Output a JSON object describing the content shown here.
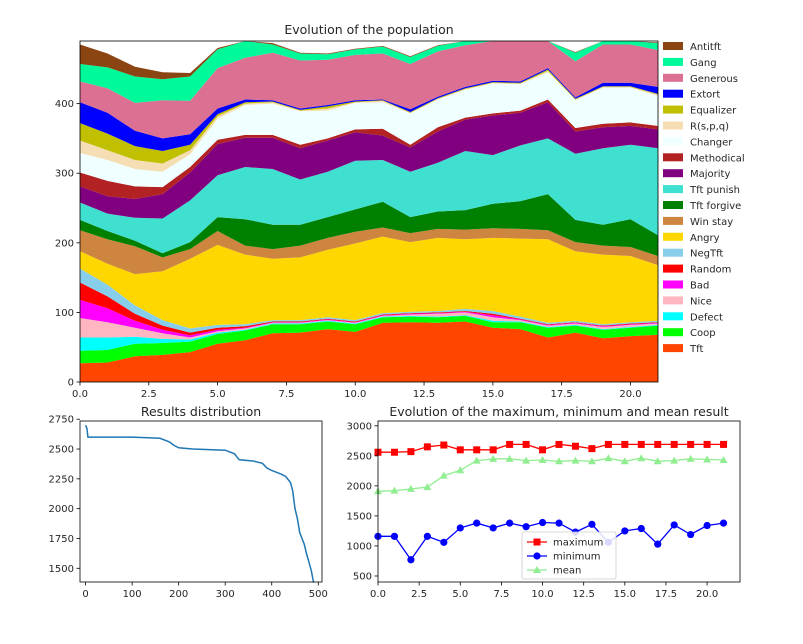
{
  "chart_data": [
    {
      "type": "area",
      "stacked": true,
      "title": "Evolution of the population",
      "xlim": [
        0,
        21
      ],
      "ylim": [
        0,
        490
      ],
      "xticks": [
        0,
        2.5,
        5,
        7.5,
        10,
        12.5,
        15,
        17.5,
        20
      ],
      "xtick_labels": [
        "0.0",
        "2.5",
        "5.0",
        "7.5",
        "10.0",
        "12.5",
        "15.0",
        "17.5",
        "20.0"
      ],
      "yticks": [
        0,
        100,
        200,
        300,
        400
      ],
      "yticks_labels": [
        "0",
        "100",
        "200",
        "300",
        "400"
      ],
      "legend_position": "right-outside",
      "x": [
        0,
        1,
        2,
        3,
        4,
        5,
        6,
        7,
        8,
        9,
        10,
        11,
        12,
        13,
        14,
        15,
        16,
        17,
        18,
        19,
        20,
        21
      ],
      "series": [
        {
          "name": "Tft",
          "color": "#ff4500",
          "values": [
            27,
            28,
            37,
            39,
            43,
            55,
            60,
            70,
            71,
            76,
            72,
            85,
            86,
            85,
            87,
            78,
            76,
            64,
            71,
            63,
            66,
            68
          ]
        },
        {
          "name": "Coop",
          "color": "#00ff00",
          "values": [
            18,
            18,
            18,
            17,
            15,
            14,
            14,
            13,
            12,
            11,
            11,
            8,
            8,
            8,
            8,
            8,
            10,
            14,
            10,
            12,
            12,
            13
          ]
        },
        {
          "name": "Defect",
          "color": "#00ffff",
          "values": [
            19,
            18,
            10,
            6,
            3,
            2,
            1,
            1,
            1,
            1,
            1,
            1,
            1,
            1,
            1,
            2,
            1,
            1,
            1,
            1,
            1,
            1
          ]
        },
        {
          "name": "Nice",
          "color": "#ffb6c1",
          "values": [
            28,
            22,
            13,
            8,
            3,
            2,
            2,
            1,
            1,
            1,
            1,
            1,
            2,
            4,
            4,
            5,
            2,
            2,
            2,
            3,
            3,
            2
          ]
        },
        {
          "name": "Bad",
          "color": "#ff00ff",
          "values": [
            26,
            20,
            10,
            5,
            3,
            2,
            1,
            1,
            1,
            1,
            1,
            1,
            1,
            1,
            1,
            3,
            1,
            1,
            1,
            1,
            1,
            1
          ]
        },
        {
          "name": "Random",
          "color": "#ff0000",
          "values": [
            25,
            17,
            10,
            6,
            4,
            3,
            2,
            1,
            1,
            1,
            1,
            1,
            1,
            1,
            1,
            2,
            1,
            1,
            1,
            1,
            1,
            1
          ]
        },
        {
          "name": "NegTft",
          "color": "#87ceeb",
          "values": [
            20,
            17,
            12,
            8,
            6,
            4,
            3,
            2,
            2,
            2,
            2,
            2,
            2,
            2,
            3,
            4,
            3,
            2,
            2,
            2,
            2,
            2
          ]
        },
        {
          "name": "Angry",
          "color": "#ffd700",
          "values": [
            25,
            30,
            45,
            70,
            100,
            115,
            100,
            88,
            90,
            97,
            110,
            110,
            100,
            105,
            100,
            105,
            112,
            120,
            100,
            100,
            95,
            80
          ]
        },
        {
          "name": "Win stay",
          "color": "#cd853f",
          "values": [
            30,
            35,
            40,
            20,
            14,
            20,
            13,
            14,
            17,
            17,
            17,
            13,
            13,
            13,
            14,
            14,
            14,
            13,
            13,
            13,
            13,
            13
          ]
        },
        {
          "name": "Tft forgive",
          "color": "#008000",
          "values": [
            15,
            12,
            8,
            6,
            10,
            20,
            38,
            35,
            30,
            30,
            32,
            37,
            23,
            25,
            28,
            35,
            40,
            52,
            32,
            30,
            40,
            30
          ]
        },
        {
          "name": "Tft punish",
          "color": "#40e0d0",
          "values": [
            25,
            25,
            33,
            50,
            60,
            60,
            75,
            80,
            65,
            65,
            70,
            60,
            65,
            70,
            85,
            70,
            80,
            80,
            95,
            110,
            107,
            125
          ]
        },
        {
          "name": "Majority",
          "color": "#800080",
          "values": [
            23,
            25,
            27,
            35,
            40,
            45,
            42,
            45,
            45,
            45,
            41,
            35,
            35,
            45,
            45,
            57,
            47,
            52,
            32,
            30,
            27,
            27
          ]
        },
        {
          "name": "Methodical",
          "color": "#b22222",
          "values": [
            20,
            22,
            18,
            10,
            8,
            6,
            4,
            4,
            5,
            3,
            4,
            10,
            4,
            6,
            3,
            3,
            3,
            4,
            5,
            5,
            5,
            5
          ]
        },
        {
          "name": "Changer",
          "color": "#f0ffff",
          "values": [
            28,
            30,
            25,
            22,
            18,
            30,
            43,
            45,
            48,
            40,
            38,
            38,
            45,
            40,
            40,
            43,
            38,
            39,
            40,
            52,
            50,
            43
          ]
        },
        {
          "name": "R(s,p,q)",
          "color": "#f5deb3",
          "values": [
            18,
            14,
            13,
            12,
            6,
            4,
            2,
            2,
            1,
            3,
            1,
            2,
            1,
            1,
            1,
            1,
            1,
            2,
            1,
            1,
            1,
            2
          ]
        },
        {
          "name": "Equalizer",
          "color": "#c0c000",
          "values": [
            25,
            24,
            20,
            18,
            8,
            3,
            2,
            1,
            1,
            3,
            1,
            1,
            1,
            1,
            1,
            1,
            1,
            2,
            1,
            1,
            1,
            1
          ]
        },
        {
          "name": "Extort",
          "color": "#0000ff",
          "values": [
            30,
            30,
            22,
            18,
            15,
            8,
            4,
            2,
            2,
            2,
            2,
            1,
            4,
            2,
            2,
            2,
            2,
            2,
            2,
            5,
            5,
            10
          ]
        },
        {
          "name": "Generous",
          "color": "#db7093",
          "values": [
            30,
            35,
            40,
            55,
            48,
            58,
            60,
            68,
            69,
            65,
            65,
            66,
            65,
            65,
            60,
            60,
            60,
            55,
            52,
            55,
            55,
            53
          ]
        },
        {
          "name": "Gang",
          "color": "#00fa9a",
          "values": [
            25,
            30,
            38,
            30,
            35,
            27,
            25,
            12,
            10,
            8,
            8,
            10,
            10,
            8,
            10,
            8,
            8,
            12,
            12,
            10,
            10,
            10
          ]
        },
        {
          "name": "Antitft",
          "color": "#8b4513",
          "values": [
            28,
            20,
            14,
            10,
            5,
            2,
            2,
            2,
            1,
            1,
            1,
            1,
            1,
            1,
            1,
            1,
            1,
            1,
            1,
            1,
            1,
            1
          ]
        }
      ]
    },
    {
      "type": "line",
      "title": "Results distribution",
      "xlim": [
        -12,
        508
      ],
      "ylim": [
        1385,
        2735
      ],
      "xticks": [
        0,
        100,
        200,
        300,
        400,
        500
      ],
      "xtick_labels": [
        "0",
        "100",
        "200",
        "300",
        "400",
        "500"
      ],
      "yticks": [
        1500,
        1750,
        2000,
        2250,
        2500,
        2750
      ],
      "ytick_labels": [
        "1500",
        "1750",
        "2000",
        "2250",
        "2500",
        "2750"
      ],
      "series": [
        {
          "color": "#1f77b4",
          "x": [
            0,
            3,
            5,
            20,
            100,
            160,
            180,
            190,
            200,
            230,
            300,
            320,
            330,
            360,
            380,
            390,
            400,
            420,
            430,
            440,
            445,
            450,
            455,
            458,
            460,
            465,
            470,
            475,
            480,
            485,
            490
          ],
          "values": [
            2700,
            2670,
            2600,
            2600,
            2600,
            2590,
            2560,
            2530,
            2510,
            2500,
            2490,
            2460,
            2410,
            2400,
            2380,
            2340,
            2320,
            2290,
            2270,
            2220,
            2150,
            2000,
            1920,
            1850,
            1800,
            1750,
            1700,
            1620,
            1550,
            1480,
            1380
          ]
        }
      ]
    },
    {
      "type": "line",
      "title": "Evolution of the maximum, minimum and mean result",
      "xlim": [
        0,
        22
      ],
      "ylim": [
        400,
        3080
      ],
      "xticks": [
        0,
        2.5,
        5,
        7.5,
        10,
        12.5,
        15,
        17.5,
        20
      ],
      "xtick_labels": [
        "0.0",
        "2.5",
        "5.0",
        "7.5",
        "10.0",
        "12.5",
        "15.0",
        "17.5",
        "20.0"
      ],
      "yticks": [
        500,
        1000,
        1500,
        2000,
        2500,
        3000
      ],
      "ytick_labels": [
        "500",
        "1000",
        "1500",
        "2000",
        "2500",
        "3000"
      ],
      "legend_position": "lower-center",
      "x": [
        0,
        1,
        2,
        3,
        4,
        5,
        6,
        7,
        8,
        9,
        10,
        11,
        12,
        13,
        14,
        15,
        16,
        17,
        18,
        19,
        20,
        21
      ],
      "series": [
        {
          "name": "maximum",
          "color": "#ff0000",
          "marker": "square",
          "values": [
            2560,
            2560,
            2570,
            2650,
            2680,
            2600,
            2600,
            2600,
            2690,
            2690,
            2600,
            2690,
            2660,
            2620,
            2690,
            2690,
            2690,
            2690,
            2690,
            2690,
            2690,
            2690
          ]
        },
        {
          "name": "minimum",
          "color": "#0000ff",
          "marker": "circle",
          "values": [
            1160,
            1160,
            770,
            1160,
            1060,
            1300,
            1380,
            1300,
            1380,
            1320,
            1390,
            1380,
            1230,
            1360,
            1060,
            1250,
            1290,
            1030,
            1350,
            1190,
            1340,
            1380
          ]
        },
        {
          "name": "mean",
          "color": "#90ee90",
          "marker": "triangle",
          "values": [
            1910,
            1920,
            1950,
            1980,
            2170,
            2260,
            2420,
            2450,
            2450,
            2420,
            2430,
            2410,
            2420,
            2410,
            2460,
            2410,
            2460,
            2410,
            2420,
            2450,
            2440,
            2430
          ]
        }
      ]
    }
  ]
}
